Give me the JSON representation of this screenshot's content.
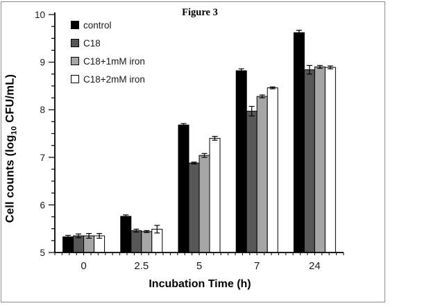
{
  "figure": {
    "title": "Figure 3"
  },
  "axes": {
    "y": {
      "label_prefix": "Cell counts (log",
      "label_sub": "10",
      "label_suffix": " CFU/mL)",
      "min": 5,
      "max": 10,
      "major_step": 1,
      "minor_step": 0.25,
      "tick_labels": [
        "5",
        "6",
        "7",
        "8",
        "9",
        "10"
      ]
    },
    "x": {
      "label": "Incubation Time (h)",
      "tick_labels": [
        "0",
        "2.5",
        "5",
        "7",
        "24"
      ]
    }
  },
  "colors": {
    "control": "#000000",
    "c18": "#575757",
    "c18_1mm": "#a6a6a6",
    "c18_2mm": "#ffffff",
    "bar_outline": "#000000",
    "axis": "#000000",
    "figure_border": "#8c8c8c"
  },
  "chart_data": {
    "type": "bar",
    "title": "Figure 3",
    "xlabel": "Incubation Time (h)",
    "ylabel": "Cell counts (log10 CFU/mL)",
    "categories": [
      "0",
      "2.5",
      "5",
      "7",
      "24"
    ],
    "ylim": [
      5,
      10
    ],
    "y_major_step": 1,
    "y_minor_step": 0.25,
    "grid": false,
    "error_bars": true,
    "legend_position": "upper-left",
    "series": [
      {
        "name": "control",
        "color": "#000000",
        "values": [
          5.33,
          5.76,
          7.68,
          8.82,
          9.62
        ],
        "errors": [
          0.03,
          0.03,
          0.03,
          0.04,
          0.05
        ]
      },
      {
        "name": "C18",
        "color": "#575757",
        "values": [
          5.35,
          5.46,
          6.88,
          7.97,
          8.84
        ],
        "errors": [
          0.04,
          0.03,
          0.02,
          0.1,
          0.09
        ]
      },
      {
        "name": "C18+1mM iron",
        "color": "#a6a6a6",
        "values": [
          5.35,
          5.44,
          7.04,
          8.28,
          8.9
        ],
        "errors": [
          0.05,
          0.02,
          0.04,
          0.03,
          0.03
        ]
      },
      {
        "name": "C18+2mM iron",
        "color": "#ffffff",
        "values": [
          5.35,
          5.49,
          7.4,
          8.46,
          8.89
        ],
        "errors": [
          0.05,
          0.08,
          0.04,
          0.02,
          0.03
        ]
      }
    ]
  }
}
